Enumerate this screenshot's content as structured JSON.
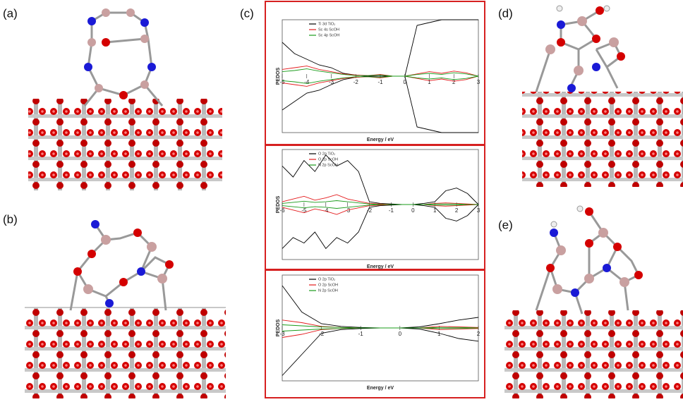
{
  "panel_labels": [
    "(a)",
    "(b)",
    "(c)",
    "(d)",
    "(e)"
  ],
  "chart_data": [
    {
      "type": "line",
      "xlabel": "Energy / eV",
      "ylabel": "PEDOS",
      "x": [
        -5,
        -4.5,
        -4,
        -3.5,
        -3,
        -2.5,
        -2,
        -1.5,
        -1,
        -0.5,
        0,
        0.5,
        1,
        1.5,
        2,
        2.5,
        3
      ],
      "xlim": [
        -5,
        3
      ],
      "xticks": [
        -5,
        -4,
        -3,
        -2,
        -1,
        0,
        1,
        2,
        3
      ],
      "ylim": [
        -10,
        10
      ],
      "series": [
        {
          "name": "Ti 3d TiO₂",
          "color": "#000000",
          "values": [
            6,
            4,
            3,
            2,
            1.5,
            0.5,
            0.2,
            0,
            0,
            0,
            0,
            9,
            9.5,
            10,
            10,
            10,
            10
          ],
          "values_down": [
            -6,
            -4.5,
            -3,
            -2.5,
            -1.5,
            -0.6,
            -0.2,
            0,
            0,
            0,
            0,
            -9,
            -9.5,
            -10,
            -10,
            -10,
            -10
          ]
        },
        {
          "name": "Sc 4s ScOH",
          "color": "#e41a1c",
          "values": [
            1.2,
            1.5,
            1.8,
            1.2,
            0.8,
            0.4,
            0.2,
            0.1,
            0.3,
            0,
            0,
            0.4,
            0.8,
            0.5,
            0.9,
            0.6,
            0
          ],
          "values_down": [
            -1.2,
            -1.5,
            -1.8,
            -1.2,
            -0.8,
            -0.4,
            -0.2,
            -0.1,
            -0.3,
            0,
            0,
            -0.4,
            -0.8,
            -0.5,
            -0.9,
            -0.6,
            0
          ]
        },
        {
          "name": "Sc 4p ScOH",
          "color": "#1a9b1a",
          "values": [
            0.8,
            1,
            1.3,
            0.9,
            0.6,
            0.3,
            0.1,
            0.1,
            0.2,
            0,
            0,
            0.3,
            0.5,
            0.3,
            0.6,
            0.4,
            0
          ],
          "values_down": [
            -0.8,
            -1,
            -1.3,
            -0.9,
            -0.6,
            -0.3,
            -0.1,
            -0.1,
            -0.2,
            0,
            0,
            -0.3,
            -0.5,
            -0.3,
            -0.6,
            -0.4,
            0
          ]
        }
      ]
    },
    {
      "type": "line",
      "xlabel": "Energy / eV",
      "ylabel": "PEDOS",
      "x": [
        -6,
        -5.5,
        -5,
        -4.5,
        -4,
        -3.5,
        -3,
        -2.5,
        -2,
        -1.5,
        -1,
        -0.5,
        0,
        0.5,
        1,
        1.5,
        2,
        2.5,
        3
      ],
      "xlim": [
        -6,
        3
      ],
      "xticks": [
        -6,
        -5,
        -4,
        -3,
        -2,
        -1,
        0,
        1,
        2,
        3
      ],
      "ylim": [
        -10,
        10
      ],
      "series": [
        {
          "name": "O 2p TiO₂",
          "color": "#000000",
          "values": [
            7,
            5,
            8,
            6,
            9,
            7,
            8,
            6,
            0.5,
            0.2,
            0.1,
            0,
            0,
            0.2,
            0.5,
            2.5,
            3,
            2,
            0
          ],
          "values_down": [
            -8,
            -6,
            -7,
            -5,
            -8,
            -6,
            -7,
            -5,
            -0.5,
            -0.2,
            -0.1,
            0,
            0,
            -0.2,
            -0.5,
            -2.5,
            -3,
            -2,
            0
          ]
        },
        {
          "name": "O 2p ScOH",
          "color": "#e41a1c",
          "values": [
            0.5,
            1,
            1.5,
            0.8,
            1.2,
            1.8,
            1,
            0.6,
            0.2,
            0.1,
            0,
            0,
            0,
            0,
            0.2,
            0.3,
            0.2,
            0.1,
            0
          ],
          "values_down": [
            -0.5,
            -1,
            -1.5,
            -0.8,
            -1.2,
            -1.8,
            -1,
            -0.6,
            -0.2,
            -0.1,
            0,
            0,
            0,
            0,
            -0.2,
            -0.3,
            -0.2,
            -0.1,
            0
          ]
        },
        {
          "name": "N 2p ScOH",
          "color": "#1a9b1a",
          "values": [
            0.2,
            0.4,
            0.6,
            0.4,
            0.5,
            0.7,
            0.5,
            0.3,
            0.1,
            0,
            0,
            0,
            0,
            0,
            0.1,
            0.1,
            0.1,
            0,
            0
          ],
          "values_down": [
            -0.2,
            -0.4,
            -0.6,
            -0.4,
            -0.5,
            -0.7,
            -0.5,
            -0.3,
            -0.1,
            0,
            0,
            0,
            0,
            0,
            -0.1,
            -0.1,
            -0.1,
            0,
            0
          ]
        }
      ]
    },
    {
      "type": "line",
      "xlabel": "Energy / eV",
      "ylabel": "PEDOS",
      "x": [
        -3,
        -2.5,
        -2,
        -1.5,
        -1,
        -0.5,
        0,
        0.5,
        1,
        1.5,
        2
      ],
      "xlim": [
        -3,
        2
      ],
      "xticks": [
        -3,
        -2,
        -1,
        0,
        1,
        2
      ],
      "ylim": [
        -10,
        10
      ],
      "series": [
        {
          "name": "O 2p TiO₂",
          "color": "#000000",
          "values": [
            8,
            3,
            0.8,
            0.3,
            0.1,
            0,
            0,
            0.2,
            0.8,
            1.5,
            2
          ],
          "values_down": [
            -9,
            -5,
            -1,
            -0.3,
            -0.1,
            0,
            0,
            -0.2,
            -1,
            -2,
            -2.5
          ]
        },
        {
          "name": "O 2p ScOH",
          "color": "#e41a1c",
          "values": [
            1.5,
            1,
            0.3,
            0.1,
            0,
            0,
            0,
            0,
            0.3,
            0.2,
            0.1
          ],
          "values_down": [
            -1.8,
            -1.2,
            -0.3,
            -0.1,
            0,
            0,
            0,
            0,
            -0.3,
            -0.2,
            -0.1
          ]
        },
        {
          "name": "N 2p ScOH",
          "color": "#1a9b1a",
          "values": [
            0.6,
            0.4,
            0.2,
            0.1,
            0,
            0,
            0,
            0,
            0.1,
            0.1,
            0
          ],
          "values_down": [
            -0.6,
            -0.4,
            -0.2,
            -0.1,
            0,
            0,
            0,
            0,
            -0.1,
            -0.1,
            0
          ]
        }
      ]
    }
  ]
}
